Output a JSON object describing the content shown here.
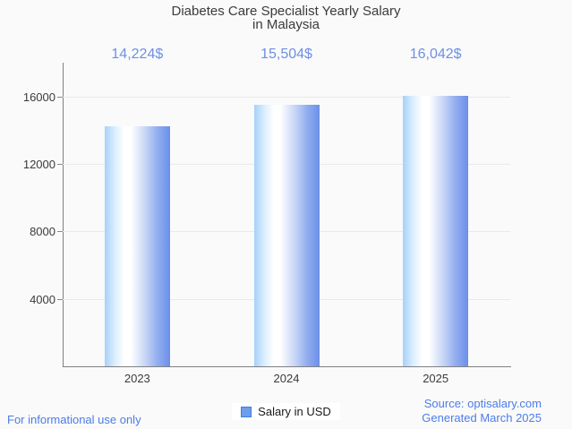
{
  "chart_data": {
    "type": "bar",
    "title": "Diabetes Care Specialist Yearly Salary in Malaysia",
    "title_lines": [
      "Diabetes Care Specialist Yearly Salary",
      "in Malaysia"
    ],
    "categories": [
      "2023",
      "2024",
      "2025"
    ],
    "series": [
      {
        "name": "Salary in USD",
        "values": [
          14224,
          15504,
          16042
        ]
      }
    ],
    "value_labels": [
      "14,224$",
      "15,504$",
      "16,042$"
    ],
    "xlabel": "",
    "ylabel": "",
    "ylim": [
      0,
      18000
    ],
    "yticks": [
      4000,
      8000,
      12000,
      16000
    ],
    "ytick_labels": [
      "4000",
      "8000",
      "12000",
      "16000"
    ],
    "grid": true,
    "legend_position": "bottom"
  },
  "legend": {
    "label": "Salary in USD"
  },
  "footer": {
    "left": "For informational use only",
    "right_line1": "Source: optisalary.com",
    "right_line2": "Generated March 2025"
  },
  "colors": {
    "background": "#fafafa",
    "bar_edge_left": "#a7d1fa",
    "bar_center": "#ffffff",
    "bar_edge_right": "#6b90e8",
    "value_label_blue": "#6d90e4",
    "footer_blue": "#4c7de8",
    "legend_swatch_fill": "#6d9eeb",
    "legend_swatch_border": "#3f7ddd",
    "axis_line": "#808080",
    "gridline": "#e9e9e9",
    "text_dark": "#3b3b3b"
  }
}
